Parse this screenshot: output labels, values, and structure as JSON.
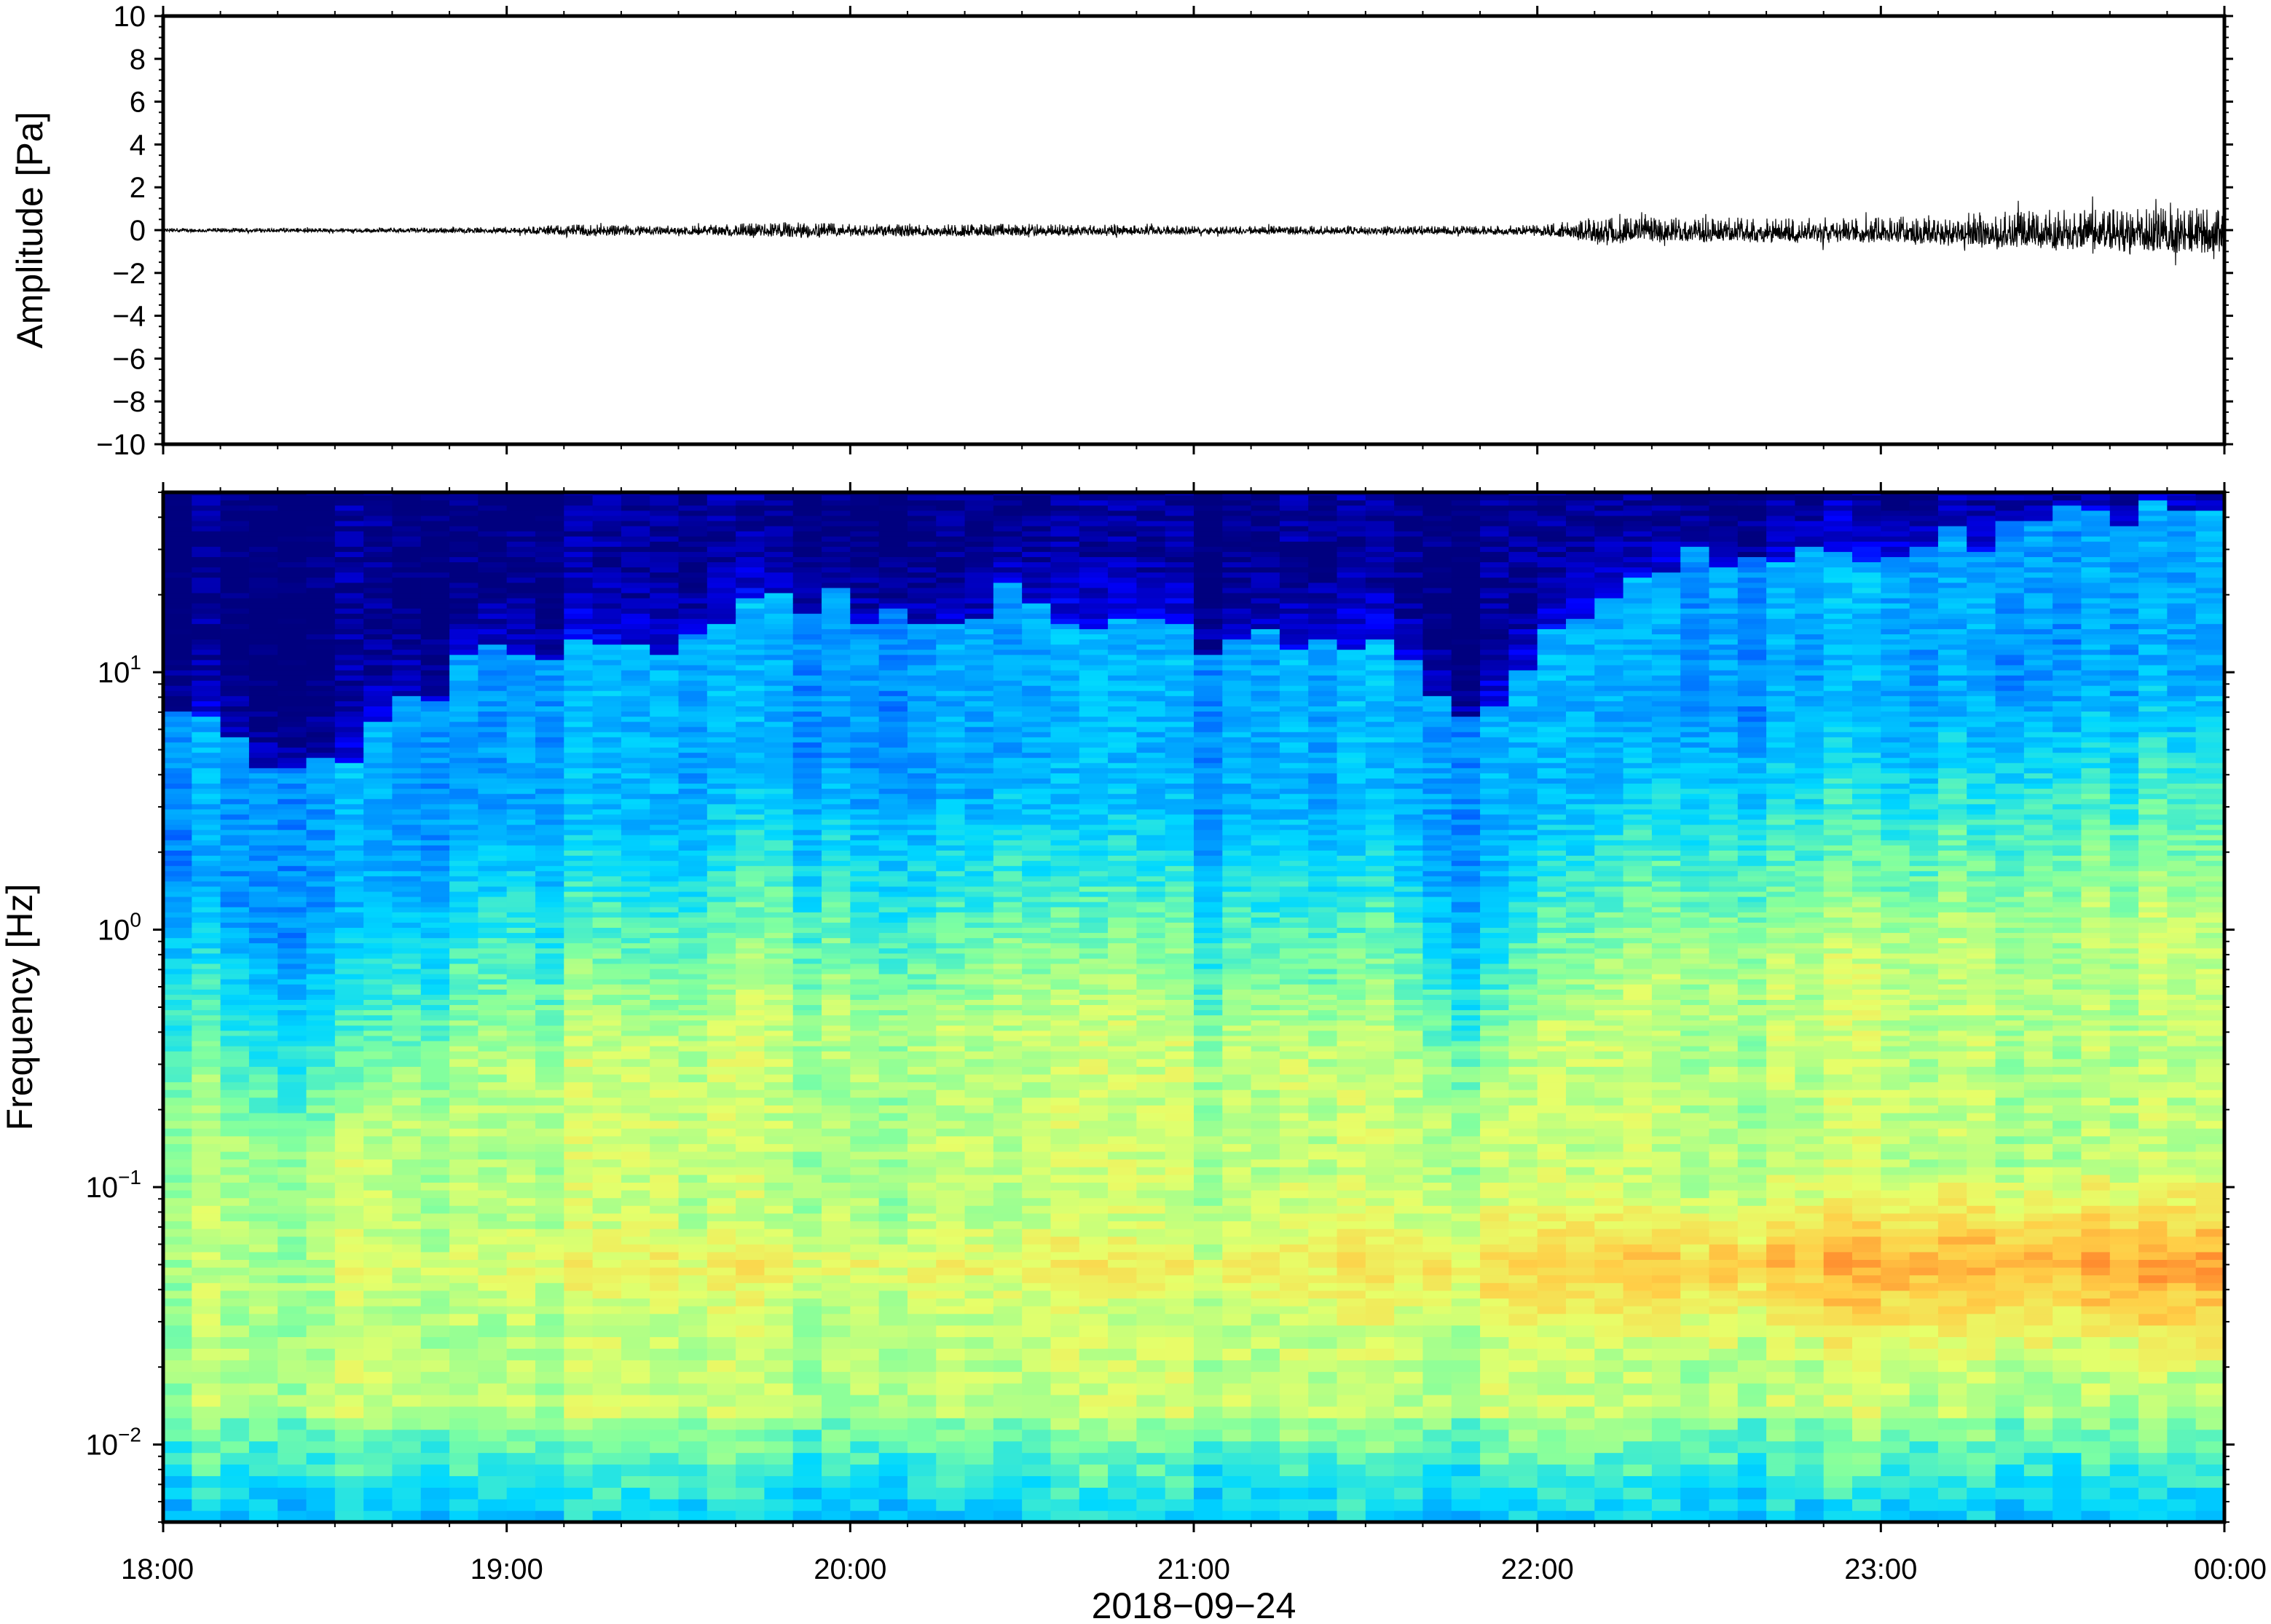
{
  "chart_data": [
    {
      "type": "line",
      "panel": "waveform",
      "ylabel": "Amplitude [Pa]",
      "ylim": [
        -10,
        10
      ],
      "y_ticks": [
        10,
        8,
        6,
        4,
        2,
        0,
        -2,
        -4,
        -6,
        -8,
        -10
      ],
      "y_tick_labels": [
        "10",
        "8",
        "6",
        "4",
        "2",
        "0",
        "−2",
        "−4",
        "−6",
        "−8",
        "−10"
      ],
      "xlim": [
        "2018-09-24T18:00",
        "2018-09-25T00:00"
      ],
      "grid": false,
      "series_color": "#000000",
      "envelope": {
        "time": [
          "18:00",
          "18:30",
          "19:00",
          "19:15",
          "19:30",
          "19:50",
          "20:00",
          "20:30",
          "21:00",
          "21:30",
          "21:50",
          "22:00",
          "22:10",
          "22:30",
          "22:50",
          "23:00",
          "23:20",
          "23:40",
          "00:00"
        ],
        "amplitude_pa": [
          0.1,
          0.1,
          0.15,
          0.3,
          0.2,
          0.4,
          0.3,
          0.3,
          0.2,
          0.2,
          0.2,
          0.25,
          0.6,
          0.6,
          0.6,
          0.6,
          0.9,
          1.0,
          1.1
        ]
      }
    },
    {
      "type": "heatmap",
      "panel": "spectrogram",
      "ylabel": "Frequency [Hz]",
      "xlabel": "2018−09−24",
      "yscale": "log",
      "ylim": [
        0.005,
        50
      ],
      "y_ticks": [
        {
          "base": "10",
          "exp": "1"
        },
        {
          "base": "10",
          "exp": "0"
        },
        {
          "base": "10",
          "exp": "−1"
        },
        {
          "base": "10",
          "exp": "−2"
        }
      ],
      "x_tick_labels": [
        "18:00",
        "19:00",
        "20:00",
        "21:00",
        "22:00",
        "23:00",
        "00:00"
      ],
      "xlim": [
        "2018-09-24T18:00",
        "2018-09-25T00:00"
      ],
      "colormap": [
        "#00007f",
        "#0000ff",
        "#0080ff",
        "#00d8ff",
        "#7fffa0",
        "#e6ff6a",
        "#ffce47",
        "#ff7a28",
        "#e02020"
      ],
      "colorbar": false,
      "grid": false,
      "upper_energy_edge_hz": {
        "time": [
          "18:00",
          "18:15",
          "18:30",
          "18:45",
          "19:00",
          "19:30",
          "19:50",
          "20:00",
          "20:15",
          "20:30",
          "20:45",
          "21:00",
          "21:30",
          "21:50",
          "22:00",
          "22:20",
          "22:40",
          "23:00",
          "23:20",
          "23:40",
          "00:00"
        ],
        "freq_hz": [
          8,
          5,
          5,
          8,
          12,
          12,
          20,
          18,
          15,
          23,
          15,
          14,
          14,
          6,
          15,
          25,
          30,
          25,
          35,
          40,
          45
        ]
      },
      "peak_band_hz": [
        0.03,
        0.08
      ],
      "peak_intensity_trend": {
        "time": [
          "18:00",
          "19:00",
          "20:00",
          "21:00",
          "22:00",
          "23:00",
          "00:00"
        ],
        "relative": [
          0.45,
          0.6,
          0.65,
          0.62,
          0.75,
          0.88,
          0.95
        ]
      }
    }
  ]
}
